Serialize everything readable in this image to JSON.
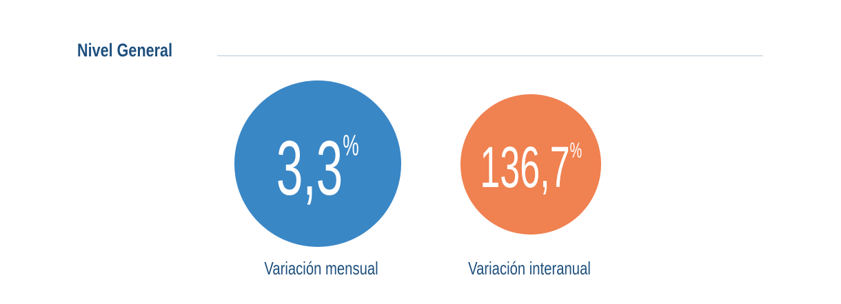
{
  "section": {
    "title": "Nivel General"
  },
  "indicators": [
    {
      "value": "3,3",
      "unit": "%",
      "label": "Variación mensual",
      "color": "#3a87c6"
    },
    {
      "value": "136,7",
      "unit": "%",
      "label": "Variación interanual",
      "color": "#f08150"
    }
  ]
}
